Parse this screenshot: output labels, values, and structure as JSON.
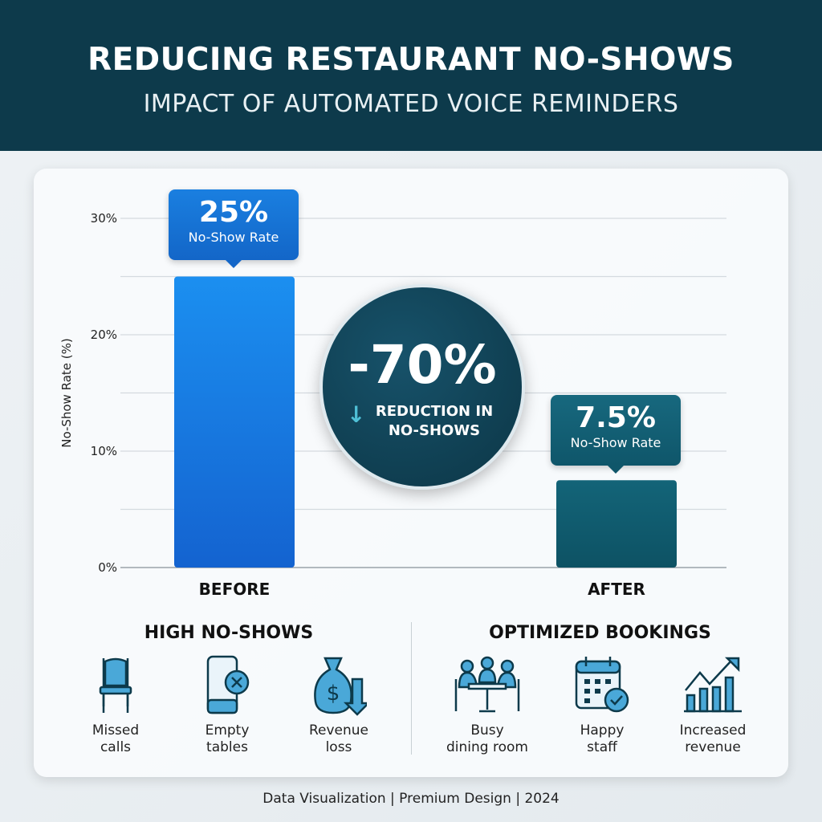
{
  "header": {
    "title": "REDUCING RESTAURANT NO-SHOWS",
    "subtitle": "IMPACT OF AUTOMATED VOICE REMINDERS"
  },
  "chart_data": {
    "type": "bar",
    "categories": [
      "BEFORE",
      "AFTER"
    ],
    "values": [
      25,
      7.5
    ],
    "ylabel": "No-Show Rate (%)",
    "ylim": [
      0,
      30
    ],
    "yticks": [
      "0%",
      "10%",
      "20%",
      "30%"
    ],
    "grid": true,
    "colors": [
      "#1a86e8",
      "#0f5a6e"
    ],
    "data_labels": [
      {
        "value": "25%",
        "caption": "No-Show Rate"
      },
      {
        "value": "7.5%",
        "caption": "No-Show Rate"
      }
    ]
  },
  "highlight": {
    "value": "-70%",
    "label_line1": "REDUCTION IN",
    "label_line2": "NO-SHOWS",
    "icon": "arrow-down-icon"
  },
  "sections": [
    {
      "title": "HIGH NO-SHOWS",
      "items": [
        {
          "icon": "chair-icon",
          "line1": "Missed",
          "line2": "calls"
        },
        {
          "icon": "phone-x-icon",
          "line1": "Empty",
          "line2": "tables"
        },
        {
          "icon": "money-bag-down-icon",
          "line1": "Revenue",
          "line2": "loss"
        }
      ]
    },
    {
      "title": "OPTIMIZED BOOKINGS",
      "items": [
        {
          "icon": "dining-group-icon",
          "line1": "Busy",
          "line2": "dining room"
        },
        {
          "icon": "calendar-check-icon",
          "line1": "Happy",
          "line2": "staff"
        },
        {
          "icon": "growth-chart-icon",
          "line1": "Increased",
          "line2": "revenue"
        }
      ]
    }
  ],
  "footer": "Data Visualization  | Premium Design | 2024"
}
